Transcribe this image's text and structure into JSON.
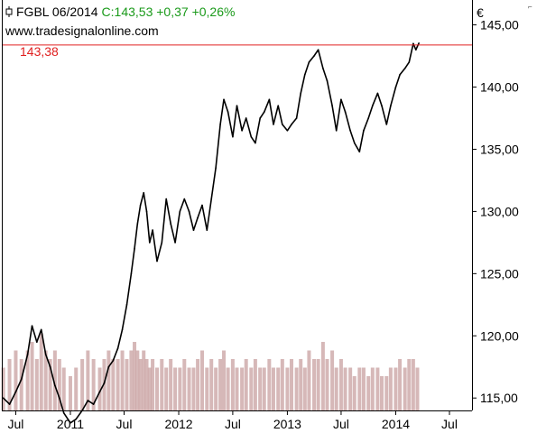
{
  "header": {
    "symbol": "FGBL 06/2014",
    "quote": "C:143,53 +0,37 +0,26%",
    "icon": "candlestick-icon",
    "quote_color": "#1a9a1a"
  },
  "source": "www.tradesignalonline.com",
  "currency": "€",
  "reference_line": {
    "value": 143.38,
    "label": "143,38",
    "color": "#e02020"
  },
  "chart_data": {
    "type": "line",
    "ylim": [
      114.0,
      147.0
    ],
    "xlim": [
      "2010-05-15",
      "2014-09-15"
    ],
    "yticks": [
      {
        "value": 115,
        "label": "115,00"
      },
      {
        "value": 120,
        "label": "120,00"
      },
      {
        "value": 125,
        "label": "125,00"
      },
      {
        "value": 130,
        "label": "130,00"
      },
      {
        "value": 135,
        "label": "135,00"
      },
      {
        "value": 140,
        "label": "140,00"
      },
      {
        "value": 145,
        "label": "145,00"
      }
    ],
    "xticks": [
      {
        "date": "2010-07-01",
        "label": "Jul"
      },
      {
        "date": "2011-01-01",
        "label": "2011"
      },
      {
        "date": "2011-07-01",
        "label": "Jul"
      },
      {
        "date": "2012-01-01",
        "label": "2012"
      },
      {
        "date": "2012-07-01",
        "label": "Jul"
      },
      {
        "date": "2013-01-01",
        "label": "2013"
      },
      {
        "date": "2013-07-01",
        "label": "Jul"
      },
      {
        "date": "2014-01-01",
        "label": "2014"
      },
      {
        "date": "2014-07-01",
        "label": "Jul"
      }
    ],
    "series": [
      {
        "color": "#000000",
        "points": [
          [
            "2010-05-20",
            115.0
          ],
          [
            "2010-06-10",
            114.5
          ],
          [
            "2010-07-01",
            115.5
          ],
          [
            "2010-07-20",
            116.5
          ],
          [
            "2010-08-10",
            118.5
          ],
          [
            "2010-08-25",
            120.8
          ],
          [
            "2010-09-10",
            119.5
          ],
          [
            "2010-09-25",
            120.5
          ],
          [
            "2010-10-10",
            118.5
          ],
          [
            "2010-10-25",
            117.5
          ],
          [
            "2010-11-10",
            116.0
          ],
          [
            "2010-11-25",
            115.0
          ],
          [
            "2010-12-10",
            113.8
          ],
          [
            "2011-01-01",
            113.0
          ],
          [
            "2011-01-20",
            113.3
          ],
          [
            "2011-02-10",
            114.0
          ],
          [
            "2011-03-01",
            114.8
          ],
          [
            "2011-03-20",
            114.5
          ],
          [
            "2011-04-10",
            115.5
          ],
          [
            "2011-04-25",
            116.2
          ],
          [
            "2011-05-10",
            117.5
          ],
          [
            "2011-05-25",
            118.0
          ],
          [
            "2011-06-10",
            119.0
          ],
          [
            "2011-06-25",
            120.5
          ],
          [
            "2011-07-10",
            122.5
          ],
          [
            "2011-07-25",
            125.0
          ],
          [
            "2011-08-05",
            127.0
          ],
          [
            "2011-08-15",
            129.0
          ],
          [
            "2011-08-25",
            130.5
          ],
          [
            "2011-09-05",
            131.5
          ],
          [
            "2011-09-15",
            130.0
          ],
          [
            "2011-09-25",
            127.5
          ],
          [
            "2011-10-05",
            128.5
          ],
          [
            "2011-10-20",
            126.0
          ],
          [
            "2011-11-05",
            127.5
          ],
          [
            "2011-11-20",
            131.0
          ],
          [
            "2011-12-05",
            129.0
          ],
          [
            "2011-12-20",
            127.5
          ],
          [
            "2012-01-05",
            130.0
          ],
          [
            "2012-01-20",
            131.0
          ],
          [
            "2012-02-05",
            130.0
          ],
          [
            "2012-02-20",
            128.5
          ],
          [
            "2012-03-05",
            129.5
          ],
          [
            "2012-03-20",
            130.5
          ],
          [
            "2012-04-05",
            128.5
          ],
          [
            "2012-04-20",
            131.0
          ],
          [
            "2012-05-05",
            133.5
          ],
          [
            "2012-05-20",
            137.0
          ],
          [
            "2012-06-01",
            139.0
          ],
          [
            "2012-06-15",
            138.0
          ],
          [
            "2012-07-01",
            136.0
          ],
          [
            "2012-07-15",
            138.5
          ],
          [
            "2012-08-01",
            136.5
          ],
          [
            "2012-08-15",
            137.5
          ],
          [
            "2012-09-01",
            136.0
          ],
          [
            "2012-09-15",
            135.5
          ],
          [
            "2012-10-01",
            137.5
          ],
          [
            "2012-10-15",
            138.0
          ],
          [
            "2012-11-01",
            139.0
          ],
          [
            "2012-11-15",
            137.0
          ],
          [
            "2012-12-01",
            138.5
          ],
          [
            "2012-12-15",
            137.0
          ],
          [
            "2013-01-01",
            136.5
          ],
          [
            "2013-01-15",
            137.0
          ],
          [
            "2013-02-01",
            137.5
          ],
          [
            "2013-02-15",
            139.5
          ],
          [
            "2013-03-01",
            141.0
          ],
          [
            "2013-03-15",
            142.0
          ],
          [
            "2013-04-01",
            142.5
          ],
          [
            "2013-04-15",
            143.0
          ],
          [
            "2013-05-01",
            141.5
          ],
          [
            "2013-05-15",
            140.5
          ],
          [
            "2013-06-01",
            138.5
          ],
          [
            "2013-06-15",
            136.5
          ],
          [
            "2013-07-01",
            139.0
          ],
          [
            "2013-07-15",
            138.0
          ],
          [
            "2013-08-01",
            136.5
          ],
          [
            "2013-08-15",
            135.5
          ],
          [
            "2013-09-01",
            134.8
          ],
          [
            "2013-09-15",
            136.5
          ],
          [
            "2013-10-01",
            137.5
          ],
          [
            "2013-10-15",
            138.5
          ],
          [
            "2013-11-01",
            139.5
          ],
          [
            "2013-11-15",
            138.5
          ],
          [
            "2013-12-01",
            137.0
          ],
          [
            "2013-12-15",
            138.5
          ],
          [
            "2014-01-01",
            140.0
          ],
          [
            "2014-01-15",
            141.0
          ],
          [
            "2014-02-01",
            141.5
          ],
          [
            "2014-02-15",
            142.0
          ],
          [
            "2014-03-01",
            143.5
          ],
          [
            "2014-03-10",
            143.0
          ],
          [
            "2014-03-20",
            143.53
          ]
        ]
      }
    ],
    "volume": {
      "color": "#c8a0a0",
      "ylim": [
        0,
        10
      ],
      "bars": [
        [
          "2010-05-20",
          5
        ],
        [
          "2010-06-10",
          6
        ],
        [
          "2010-07-01",
          7
        ],
        [
          "2010-07-20",
          6
        ],
        [
          "2010-08-10",
          7
        ],
        [
          "2010-08-25",
          8
        ],
        [
          "2010-09-10",
          6
        ],
        [
          "2010-09-25",
          9
        ],
        [
          "2010-10-10",
          7
        ],
        [
          "2010-10-25",
          6
        ],
        [
          "2010-11-10",
          7
        ],
        [
          "2010-11-25",
          6
        ],
        [
          "2010-12-10",
          5
        ],
        [
          "2011-01-01",
          4
        ],
        [
          "2011-01-20",
          5
        ],
        [
          "2011-02-10",
          6
        ],
        [
          "2011-03-01",
          7
        ],
        [
          "2011-03-20",
          6
        ],
        [
          "2011-04-10",
          5
        ],
        [
          "2011-04-25",
          6
        ],
        [
          "2011-05-10",
          7
        ],
        [
          "2011-05-25",
          6
        ],
        [
          "2011-06-10",
          6
        ],
        [
          "2011-06-25",
          7
        ],
        [
          "2011-07-10",
          6
        ],
        [
          "2011-07-25",
          7
        ],
        [
          "2011-08-05",
          8
        ],
        [
          "2011-08-15",
          7
        ],
        [
          "2011-08-25",
          6
        ],
        [
          "2011-09-05",
          7
        ],
        [
          "2011-09-15",
          6
        ],
        [
          "2011-09-25",
          5
        ],
        [
          "2011-10-05",
          6
        ],
        [
          "2011-10-20",
          5
        ],
        [
          "2011-11-05",
          6
        ],
        [
          "2011-11-20",
          5
        ],
        [
          "2011-12-05",
          6
        ],
        [
          "2011-12-20",
          5
        ],
        [
          "2012-01-05",
          5
        ],
        [
          "2012-01-20",
          6
        ],
        [
          "2012-02-05",
          5
        ],
        [
          "2012-02-20",
          5
        ],
        [
          "2012-03-05",
          6
        ],
        [
          "2012-03-20",
          7
        ],
        [
          "2012-04-05",
          5
        ],
        [
          "2012-04-20",
          6
        ],
        [
          "2012-05-05",
          5
        ],
        [
          "2012-05-20",
          6
        ],
        [
          "2012-06-01",
          7
        ],
        [
          "2012-06-15",
          5
        ],
        [
          "2012-07-01",
          6
        ],
        [
          "2012-07-15",
          5
        ],
        [
          "2012-08-01",
          5
        ],
        [
          "2012-08-15",
          6
        ],
        [
          "2012-09-01",
          5
        ],
        [
          "2012-09-15",
          6
        ],
        [
          "2012-10-01",
          5
        ],
        [
          "2012-10-15",
          5
        ],
        [
          "2012-11-01",
          6
        ],
        [
          "2012-11-15",
          5
        ],
        [
          "2012-12-01",
          5
        ],
        [
          "2012-12-15",
          6
        ],
        [
          "2013-01-01",
          5
        ],
        [
          "2013-01-15",
          6
        ],
        [
          "2013-02-01",
          5
        ],
        [
          "2013-02-15",
          6
        ],
        [
          "2013-03-01",
          5
        ],
        [
          "2013-03-15",
          7
        ],
        [
          "2013-04-01",
          6
        ],
        [
          "2013-04-15",
          6
        ],
        [
          "2013-05-01",
          8
        ],
        [
          "2013-05-15",
          6
        ],
        [
          "2013-06-01",
          7
        ],
        [
          "2013-06-15",
          5
        ],
        [
          "2013-07-01",
          6
        ],
        [
          "2013-07-15",
          5
        ],
        [
          "2013-08-01",
          5
        ],
        [
          "2013-08-15",
          4
        ],
        [
          "2013-09-01",
          5
        ],
        [
          "2013-09-15",
          5
        ],
        [
          "2013-10-01",
          4
        ],
        [
          "2013-10-15",
          5
        ],
        [
          "2013-11-01",
          5
        ],
        [
          "2013-11-15",
          4
        ],
        [
          "2013-12-01",
          4
        ],
        [
          "2013-12-15",
          5
        ],
        [
          "2014-01-01",
          5
        ],
        [
          "2014-01-15",
          6
        ],
        [
          "2014-02-01",
          5
        ],
        [
          "2014-02-15",
          6
        ],
        [
          "2014-03-01",
          6
        ],
        [
          "2014-03-15",
          5
        ]
      ]
    }
  }
}
